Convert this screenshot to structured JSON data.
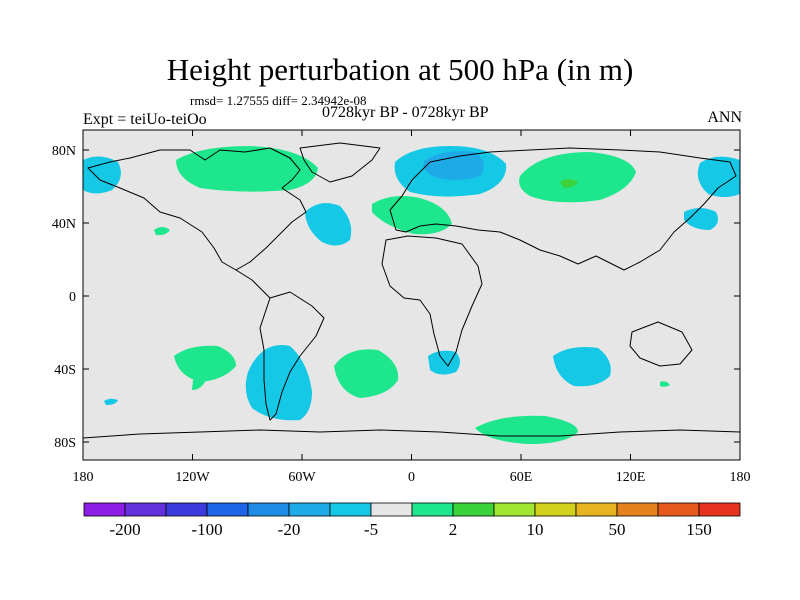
{
  "title": "Height perturbation at 500 hPa (in m)",
  "stats": "rmsd= 1.27555 diff= 2.34942e-08",
  "experiment": "Expt = teiUo-teiOo",
  "period": "0728kyr BP - 0728kyr BP",
  "season": "ANN",
  "axes": {
    "lat_labels": [
      "80N",
      "40N",
      "0",
      "40S",
      "80S"
    ],
    "lon_labels": [
      "180",
      "120W",
      "60W",
      "0",
      "60E",
      "120E",
      "180"
    ]
  },
  "colorbar": {
    "colors": [
      "#8c1ee6",
      "#6432dc",
      "#3c3cdc",
      "#1e64e6",
      "#1e8ce6",
      "#1eaae6",
      "#14c8e6",
      "#e6e6e6",
      "#1ee68c",
      "#3cd23c",
      "#a0e632",
      "#d2d21e",
      "#e6b41e",
      "#e6821e",
      "#e65a1e",
      "#e6321e"
    ],
    "labels": [
      "-200",
      "-100",
      "-20",
      "-5",
      "2",
      "10",
      "50",
      "150"
    ]
  },
  "colors": {
    "map_background": "#e6e6e6",
    "positive": "#1ee68c",
    "positive_core": "#3cd23c",
    "negative": "#14c8e6",
    "negative_core": "#1eaae6"
  }
}
